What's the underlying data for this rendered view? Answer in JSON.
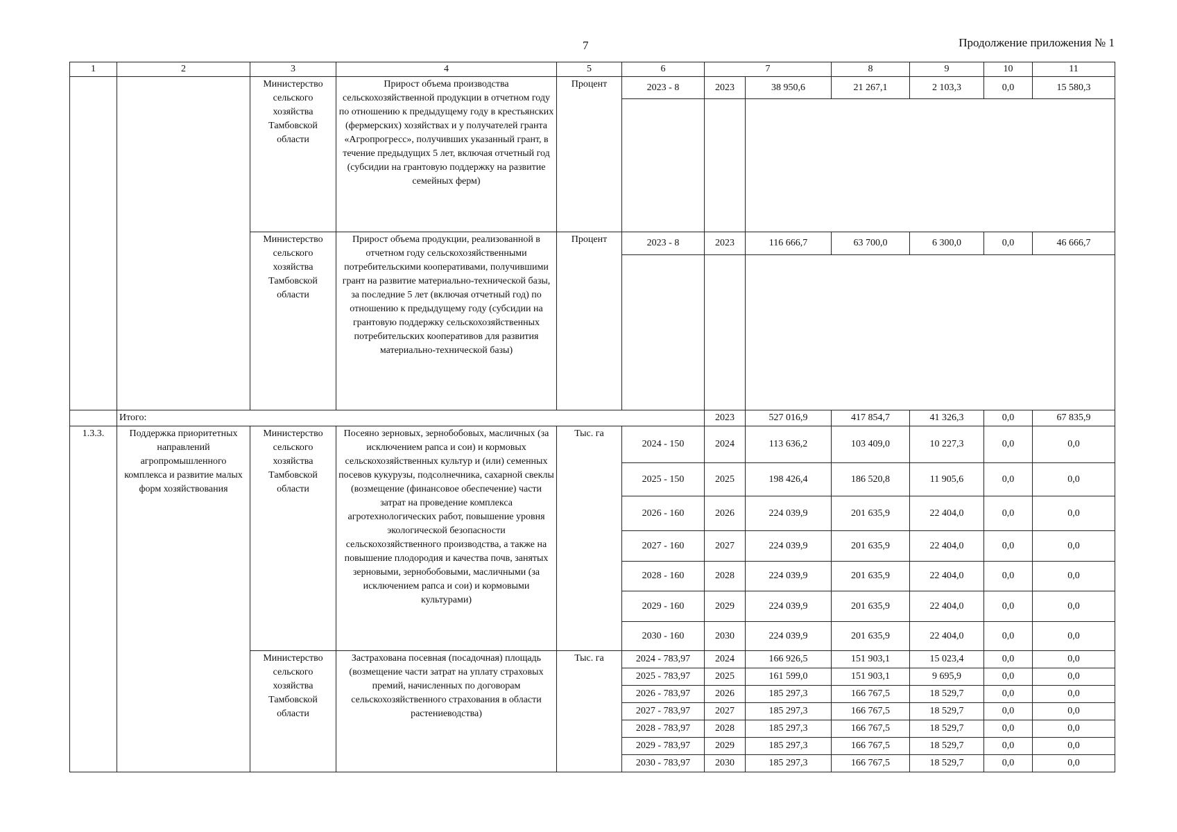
{
  "page_number": "7",
  "continuation": "Продолжение приложения № 1",
  "column_headers": [
    "1",
    "2",
    "3",
    "4",
    "5",
    "6",
    "7",
    "8",
    "9",
    "10",
    "11"
  ],
  "ministry": "Министерство сельского хозяйства Тамбовской области",
  "total_label": "Итого:",
  "blocks": [
    {
      "num": "",
      "name": "",
      "indicators": [
        {
          "executor": "Министерство сельского хозяйства Тамбовской области",
          "description": "Прирост объема производства сельскохозяйственной продукции в отчетном году по отношению к предыдущему году в крестьянских (фермерских) хозяйствах и у получателей гранта «Агропрогресс», получивших указанный грант, в течение предыдущих 5 лет, включая отчетный год (субсидии на грантовую поддержку на развитие семейных  ферм)",
          "unit": "Процент",
          "rows": [
            [
              "2023 - 8",
              "2023",
              "38 950,6",
              "21 267,1",
              "2 103,3",
              "0,0",
              "15 580,3"
            ]
          ]
        },
        {
          "executor": "Министерство сельского хозяйства Тамбовской области",
          "description": "Прирост объема продукции, реализованной в отчетном году сельскохозяйственными потребительскими кооперативами, получившими грант на развитие материально-технической базы, за последние 5 лет (включая отчетный год) по отношению к предыдущему году (субсидии на грантовую поддержку сельскохозяйственных потребительских кооперативов для развития материально-технической базы)",
          "unit": "Процент",
          "rows": [
            [
              "2023 - 8",
              "2023",
              "116 666,7",
              "63 700,0",
              "6 300,0",
              "0,0",
              "46 666,7"
            ]
          ]
        }
      ]
    }
  ],
  "total_row": [
    "2023",
    "527 016,9",
    "417 854,7",
    "41 326,3",
    "0,0",
    "67 835,9"
  ],
  "block_133": {
    "num": "1.3.3.",
    "name": "Поддержка приоритетных направлений агропромышленного комплекса и развитие малых форм хозяйствования",
    "indicators": [
      {
        "executor": "Министерство сельского хозяйства Тамбовской области",
        "description": "Посеяно зерновых, зернобобовых, масличных (за исключением рапса и сои) и кормовых сельскохозяйственных культур и (или) семенных посевов кукурузы, подсолнечника, сахарной свеклы (возмещение (финансовое обеспечение) части затрат на проведение комплекса агротехнологических работ, повышение уровня экологической безопасности сельскохозяйственного производства, а также на повышение плодородия и качества почв, занятых зерновыми, зернобобовыми, масличными (за исключением рапса и сои) и кормовыми культурами)",
        "unit": "Тыс. га",
        "rows": [
          [
            "2024 - 150",
            "2024",
            "113 636,2",
            "103 409,0",
            "10 227,3",
            "0,0",
            "0,0"
          ],
          [
            "2025 - 150",
            "2025",
            "198 426,4",
            "186 520,8",
            "11 905,6",
            "0,0",
            "0,0"
          ],
          [
            "2026 - 160",
            "2026",
            "224 039,9",
            "201 635,9",
            "22 404,0",
            "0,0",
            "0,0"
          ],
          [
            "2027 - 160",
            "2027",
            "224 039,9",
            "201 635,9",
            "22 404,0",
            "0,0",
            "0,0"
          ],
          [
            "2028 - 160",
            "2028",
            "224 039,9",
            "201 635,9",
            "22 404,0",
            "0,0",
            "0,0"
          ],
          [
            "2029 - 160",
            "2029",
            "224 039,9",
            "201 635,9",
            "22 404,0",
            "0,0",
            "0,0"
          ],
          [
            "2030 - 160",
            "2030",
            "224 039,9",
            "201 635,9",
            "22 404,0",
            "0,0",
            "0,0"
          ]
        ]
      },
      {
        "executor": "Министерство сельского хозяйства Тамбовской области",
        "description": "Застрахована посевная (посадочная) площадь (возмещение части затрат на уплату страховых премий, начисленных по договорам сельскохозяйственного страхования в области растениеводства)",
        "unit": "Тыс. га",
        "rows": [
          [
            "2024 - 783,97",
            "2024",
            "166 926,5",
            "151 903,1",
            "15 023,4",
            "0,0",
            "0,0"
          ],
          [
            "2025 - 783,97",
            "2025",
            "161 599,0",
            "151 903,1",
            "9 695,9",
            "0,0",
            "0,0"
          ],
          [
            "2026 - 783,97",
            "2026",
            "185 297,3",
            "166 767,5",
            "18 529,7",
            "0,0",
            "0,0"
          ],
          [
            "2027 - 783,97",
            "2027",
            "185 297,3",
            "166 767,5",
            "18 529,7",
            "0,0",
            "0,0"
          ],
          [
            "2028 - 783,97",
            "2028",
            "185 297,3",
            "166 767,5",
            "18 529,7",
            "0,0",
            "0,0"
          ],
          [
            "2029 - 783,97",
            "2029",
            "185 297,3",
            "166 767,5",
            "18 529,7",
            "0,0",
            "0,0"
          ],
          [
            "2030 - 783,97",
            "2030",
            "185 297,3",
            "166 767,5",
            "18 529,7",
            "0,0",
            "0,0"
          ]
        ]
      }
    ]
  }
}
